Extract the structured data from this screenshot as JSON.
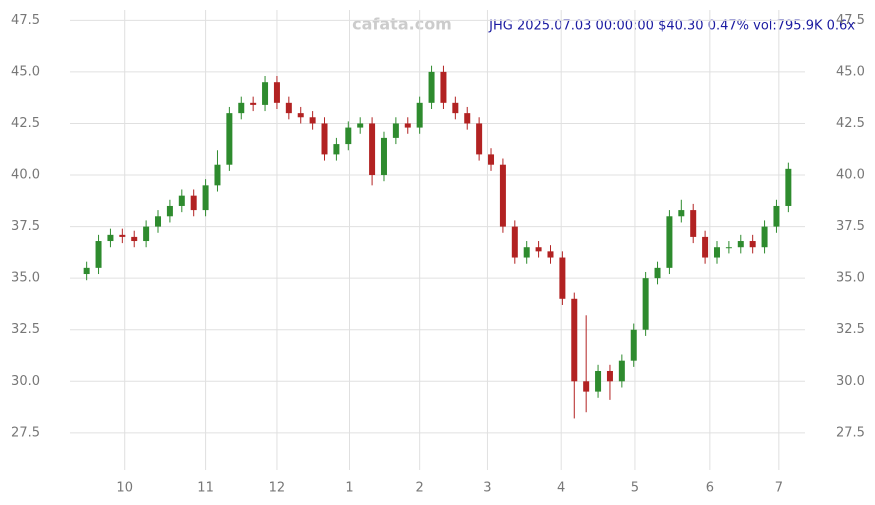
{
  "chart_data": {
    "type": "candlestick",
    "title": "JHG 2025.07.03 00:00:00 $40.30 0.47% vol:795.9K 0.6x",
    "watermark": "cafata.com",
    "open": [
      35.2,
      35.5,
      36.8,
      37.1,
      37.0,
      36.8,
      37.5,
      38.0,
      38.5,
      39.0,
      38.3,
      39.5,
      40.5,
      43.0,
      43.5,
      43.4,
      44.5,
      43.5,
      43.0,
      42.8,
      42.5,
      41.0,
      41.5,
      42.3,
      42.5,
      40.0,
      41.8,
      42.5,
      42.3,
      43.5,
      45.0,
      43.5,
      43.0,
      42.5,
      41.0,
      40.5,
      37.5,
      36.0,
      36.5,
      36.3,
      36.0,
      34.0,
      30.0,
      29.5,
      30.5,
      30.0,
      31.0,
      32.5,
      35.0,
      35.5,
      38.0,
      38.3,
      37.0,
      36.0,
      36.5,
      36.5,
      36.8,
      36.5,
      37.5,
      38.5
    ],
    "high": [
      35.8,
      37.1,
      37.4,
      37.4,
      37.3,
      37.8,
      38.3,
      38.8,
      39.3,
      39.3,
      39.8,
      41.2,
      43.3,
      43.8,
      43.8,
      44.8,
      44.8,
      43.8,
      43.3,
      43.1,
      42.8,
      41.8,
      42.6,
      42.8,
      42.8,
      42.1,
      42.8,
      42.8,
      43.8,
      45.3,
      45.3,
      43.8,
      43.3,
      42.8,
      41.3,
      40.8,
      37.8,
      36.8,
      36.8,
      36.6,
      36.3,
      34.3,
      33.2,
      30.8,
      30.8,
      31.3,
      32.8,
      35.3,
      35.8,
      38.3,
      38.8,
      38.6,
      37.3,
      36.8,
      36.8,
      37.1,
      37.1,
      37.8,
      38.8,
      40.6
    ],
    "low": [
      34.9,
      35.2,
      36.5,
      36.7,
      36.5,
      36.5,
      37.2,
      37.7,
      38.2,
      38.0,
      38.0,
      39.2,
      40.2,
      42.7,
      43.1,
      43.1,
      43.2,
      42.7,
      42.5,
      42.2,
      40.7,
      40.7,
      41.2,
      42.0,
      39.5,
      39.7,
      41.5,
      42.0,
      42.0,
      43.2,
      43.2,
      42.7,
      42.2,
      40.7,
      40.2,
      37.2,
      35.7,
      35.7,
      36.0,
      35.7,
      33.7,
      28.2,
      28.5,
      29.2,
      29.1,
      29.7,
      30.7,
      32.2,
      34.7,
      35.2,
      37.7,
      36.7,
      35.7,
      35.7,
      36.2,
      36.2,
      36.2,
      36.2,
      37.2,
      38.2
    ],
    "close": [
      35.5,
      36.8,
      37.1,
      37.0,
      36.8,
      37.5,
      38.0,
      38.5,
      39.0,
      38.3,
      39.5,
      40.5,
      43.0,
      43.5,
      43.4,
      44.5,
      43.5,
      43.0,
      42.8,
      42.5,
      41.0,
      41.5,
      42.3,
      42.5,
      40.0,
      41.8,
      42.5,
      42.3,
      43.5,
      45.0,
      43.5,
      43.0,
      42.5,
      41.0,
      40.5,
      37.5,
      36.0,
      36.5,
      36.3,
      36.0,
      34.0,
      30.0,
      29.5,
      30.5,
      30.0,
      31.0,
      32.5,
      35.0,
      35.5,
      38.0,
      38.3,
      37.0,
      36.0,
      36.5,
      36.5,
      36.8,
      36.5,
      37.5,
      38.5,
      40.3
    ],
    "up_color": "#2e8b2e",
    "down_color": "#b22222",
    "xlim": [
      -1.4,
      60.4
    ],
    "xticks": [
      {
        "value": 3.2,
        "label": "10"
      },
      {
        "value": 10.0,
        "label": "11"
      },
      {
        "value": 16.0,
        "label": "12"
      },
      {
        "value": 22.1,
        "label": "1"
      },
      {
        "value": 28.0,
        "label": "2"
      },
      {
        "value": 33.7,
        "label": "3"
      },
      {
        "value": 39.9,
        "label": "4"
      },
      {
        "value": 46.1,
        "label": "5"
      },
      {
        "value": 52.4,
        "label": "6"
      },
      {
        "value": 58.2,
        "label": "7"
      }
    ],
    "ylim": [
      25.7,
      48.0
    ],
    "yticks": [
      27.5,
      {
        "value": 30,
        "label": "30.0"
      },
      32.5,
      {
        "value": 35,
        "label": "35.0"
      },
      37.5,
      {
        "value": 40,
        "label": "40.0"
      },
      42.5,
      {
        "value": 45,
        "label": "45.0"
      },
      47.5
    ],
    "grid": true
  }
}
